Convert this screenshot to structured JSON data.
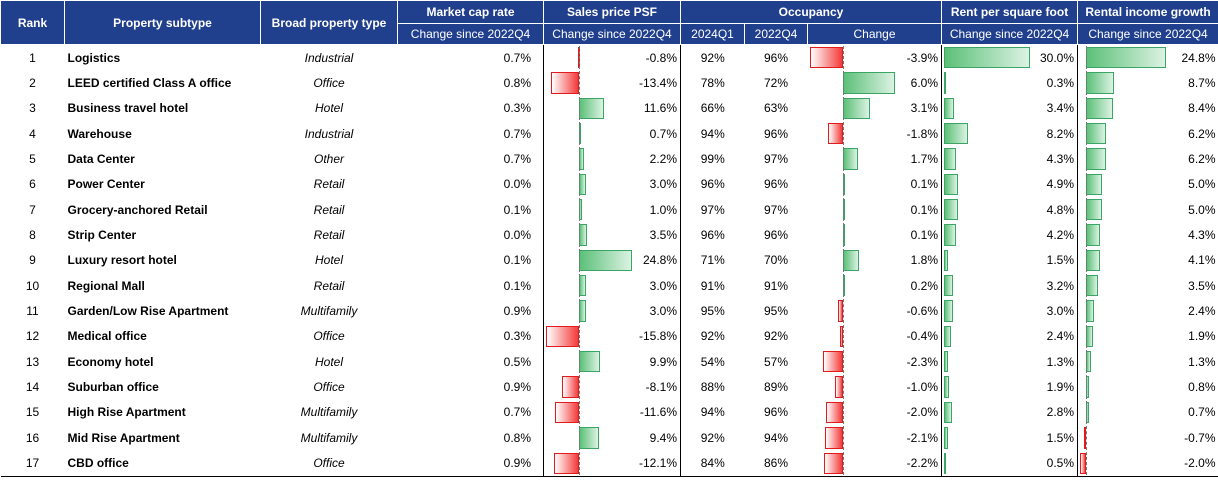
{
  "headers": {
    "rank": "Rank",
    "subtype": "Property subtype",
    "broad": "Broad property type",
    "cap": "Market cap rate",
    "psf": "Sales price PSF",
    "occ": "Occupancy",
    "rent": "Rent per square foot",
    "income": "Rental income growth",
    "change_since": "Change since 2022Q4",
    "q2024": "2024Q1",
    "q2022": "2022Q4",
    "change": "Change"
  },
  "colors": {
    "header": "#203f8c",
    "positive": "#5cc078",
    "negative": "#f43a3a"
  },
  "chart_data": {
    "type": "table",
    "columns": [
      "Rank",
      "Property subtype",
      "Broad property type",
      "Market cap rate change since 2022Q4",
      "Sales price PSF change since 2022Q4",
      "Occupancy 2024Q1",
      "Occupancy 2022Q4",
      "Occupancy change",
      "Rent per square foot change since 2022Q4",
      "Rental income growth change since 2022Q4"
    ],
    "bar_scales": {
      "psf": [
        -15.8,
        24.8
      ],
      "occ_change": [
        -3.9,
        6.0
      ],
      "rent": [
        0.0,
        30.0
      ],
      "income": [
        -2.0,
        24.8
      ]
    },
    "rows": [
      {
        "rank": "1",
        "subtype": "Logistics",
        "broad": "Industrial",
        "cap": "0.7%",
        "psf": -0.8,
        "occ24": "92%",
        "occ22": "96%",
        "occ_change": -3.9,
        "rent": 30.0,
        "income": 24.8
      },
      {
        "rank": "2",
        "subtype": "LEED certified Class A office",
        "broad": "Office",
        "cap": "0.8%",
        "psf": -13.4,
        "occ24": "78%",
        "occ22": "72%",
        "occ_change": 6.0,
        "rent": 0.3,
        "income": 8.7
      },
      {
        "rank": "3",
        "subtype": "Business travel hotel",
        "broad": "Hotel",
        "cap": "0.3%",
        "psf": 11.6,
        "occ24": "66%",
        "occ22": "63%",
        "occ_change": 3.1,
        "rent": 3.4,
        "income": 8.4
      },
      {
        "rank": "4",
        "subtype": "Warehouse",
        "broad": "Industrial",
        "cap": "0.7%",
        "psf": 0.7,
        "occ24": "94%",
        "occ22": "96%",
        "occ_change": -1.8,
        "rent": 8.2,
        "income": 6.2
      },
      {
        "rank": "5",
        "subtype": "Data Center",
        "broad": "Other",
        "cap": "0.7%",
        "psf": 2.2,
        "occ24": "99%",
        "occ22": "97%",
        "occ_change": 1.7,
        "rent": 4.3,
        "income": 6.2
      },
      {
        "rank": "6",
        "subtype": "Power Center",
        "broad": "Retail",
        "cap": "0.0%",
        "psf": 3.0,
        "occ24": "96%",
        "occ22": "96%",
        "occ_change": 0.1,
        "rent": 4.9,
        "income": 5.0
      },
      {
        "rank": "7",
        "subtype": "Grocery-anchored Retail",
        "broad": "Retail",
        "cap": "0.1%",
        "psf": 1.0,
        "occ24": "97%",
        "occ22": "97%",
        "occ_change": 0.1,
        "rent": 4.8,
        "income": 5.0
      },
      {
        "rank": "8",
        "subtype": "Strip Center",
        "broad": "Retail",
        "cap": "0.0%",
        "psf": 3.5,
        "occ24": "96%",
        "occ22": "96%",
        "occ_change": 0.1,
        "rent": 4.2,
        "income": 4.3
      },
      {
        "rank": "9",
        "subtype": "Luxury resort hotel",
        "broad": "Hotel",
        "cap": "0.1%",
        "psf": 24.8,
        "occ24": "71%",
        "occ22": "70%",
        "occ_change": 1.8,
        "rent": 1.5,
        "income": 4.1
      },
      {
        "rank": "10",
        "subtype": "Regional Mall",
        "broad": "Retail",
        "cap": "0.1%",
        "psf": 3.0,
        "occ24": "91%",
        "occ22": "91%",
        "occ_change": 0.2,
        "rent": 3.2,
        "income": 3.5
      },
      {
        "rank": "11",
        "subtype": "Garden/Low Rise Apartment",
        "broad": "Multifamily",
        "cap": "0.9%",
        "psf": 3.0,
        "occ24": "95%",
        "occ22": "95%",
        "occ_change": -0.6,
        "rent": 3.0,
        "income": 2.4
      },
      {
        "rank": "12",
        "subtype": "Medical office",
        "broad": "Office",
        "cap": "0.3%",
        "psf": -15.8,
        "occ24": "92%",
        "occ22": "92%",
        "occ_change": -0.4,
        "rent": 2.4,
        "income": 1.9
      },
      {
        "rank": "13",
        "subtype": "Economy hotel",
        "broad": "Hotel",
        "cap": "0.5%",
        "psf": 9.9,
        "occ24": "54%",
        "occ22": "57%",
        "occ_change": -2.3,
        "rent": 1.3,
        "income": 1.3
      },
      {
        "rank": "14",
        "subtype": "Suburban office",
        "broad": "Office",
        "cap": "0.9%",
        "psf": -8.1,
        "occ24": "88%",
        "occ22": "89%",
        "occ_change": -1.0,
        "rent": 1.9,
        "income": 0.8
      },
      {
        "rank": "15",
        "subtype": "High Rise Apartment",
        "broad": "Multifamily",
        "cap": "0.7%",
        "psf": -11.6,
        "occ24": "94%",
        "occ22": "96%",
        "occ_change": -2.0,
        "rent": 2.8,
        "income": 0.7
      },
      {
        "rank": "16",
        "subtype": "Mid Rise Apartment",
        "broad": "Multifamily",
        "cap": "0.8%",
        "psf": 9.4,
        "occ24": "92%",
        "occ22": "94%",
        "occ_change": -2.1,
        "rent": 1.5,
        "income": -0.7
      },
      {
        "rank": "17",
        "subtype": "CBD office",
        "broad": "Office",
        "cap": "0.9%",
        "psf": -12.1,
        "occ24": "84%",
        "occ22": "86%",
        "occ_change": -2.2,
        "rent": 0.5,
        "income": -2.0
      }
    ]
  }
}
